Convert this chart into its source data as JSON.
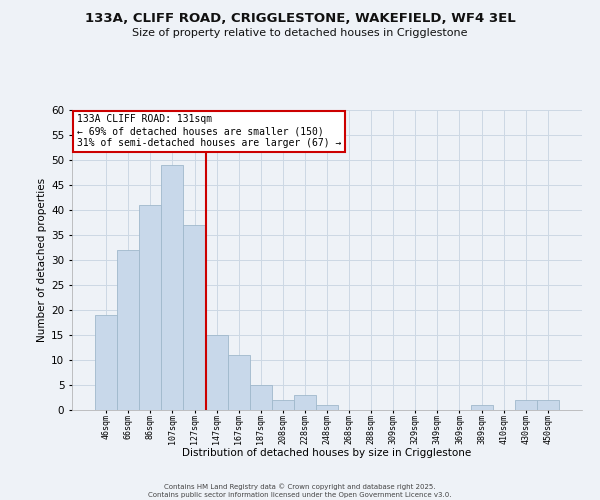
{
  "title": "133A, CLIFF ROAD, CRIGGLESTONE, WAKEFIELD, WF4 3EL",
  "subtitle": "Size of property relative to detached houses in Crigglestone",
  "xlabel": "Distribution of detached houses by size in Crigglestone",
  "ylabel": "Number of detached properties",
  "bar_labels": [
    "46sqm",
    "66sqm",
    "86sqm",
    "107sqm",
    "127sqm",
    "147sqm",
    "167sqm",
    "187sqm",
    "208sqm",
    "228sqm",
    "248sqm",
    "268sqm",
    "288sqm",
    "309sqm",
    "329sqm",
    "349sqm",
    "369sqm",
    "389sqm",
    "410sqm",
    "430sqm",
    "450sqm"
  ],
  "bar_values": [
    19,
    32,
    41,
    49,
    37,
    15,
    11,
    5,
    2,
    3,
    1,
    0,
    0,
    0,
    0,
    0,
    0,
    1,
    0,
    2,
    2
  ],
  "bar_color": "#c8d8ea",
  "bar_edge_color": "#a0b8cc",
  "red_line_after_index": 4,
  "ylim": [
    0,
    60
  ],
  "yticks": [
    0,
    5,
    10,
    15,
    20,
    25,
    30,
    35,
    40,
    45,
    50,
    55,
    60
  ],
  "annotation_title": "133A CLIFF ROAD: 131sqm",
  "annotation_line1": "← 69% of detached houses are smaller (150)",
  "annotation_line2": "31% of semi-detached houses are larger (67) →",
  "annotation_box_color": "#ffffff",
  "annotation_box_edge": "#cc0000",
  "red_line_color": "#cc0000",
  "grid_color": "#ccd8e4",
  "background_color": "#eef2f7",
  "footer_line1": "Contains HM Land Registry data © Crown copyright and database right 2025.",
  "footer_line2": "Contains public sector information licensed under the Open Government Licence v3.0."
}
